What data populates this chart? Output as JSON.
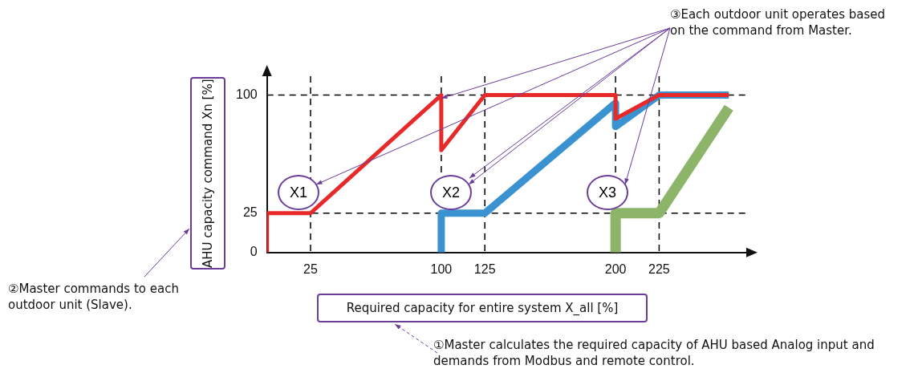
{
  "chart_data": {
    "type": "line",
    "xlabel": "Required capacity for entire system X_all [%]",
    "ylabel": "AHU capacity command Xn [%]",
    "xlim": [
      0,
      275
    ],
    "ylim": [
      0,
      112
    ],
    "xticks": [
      25,
      100,
      125,
      200,
      225
    ],
    "yticks": [
      0,
      25,
      100
    ],
    "line_style": "solid",
    "marker": "none",
    "grid": false,
    "legend": false,
    "series": [
      {
        "color": "#e8292a",
        "x": [
          0,
          0,
          25,
          100,
          100,
          125,
          200,
          200,
          225,
          265
        ],
        "values": [
          0,
          25,
          25,
          100,
          65,
          100,
          100,
          85,
          100,
          100
        ]
      },
      {
        "color": "#3a93d0",
        "x": [
          100,
          100,
          125,
          200,
          200,
          225,
          265
        ],
        "values": [
          0,
          25,
          25,
          95,
          80,
          100,
          100
        ]
      },
      {
        "color": "#8db56a",
        "x": [
          200,
          200,
          225,
          265
        ],
        "values": [
          0,
          25,
          25,
          92
        ]
      }
    ],
    "ref_lines": [
      {
        "axis": "x",
        "value": 25,
        "line_style": "dashed",
        "color": "#000000"
      },
      {
        "axis": "x",
        "value": 100,
        "line_style": "dashed",
        "color": "#000000"
      },
      {
        "axis": "x",
        "value": 125,
        "line_style": "dashed",
        "color": "#000000"
      },
      {
        "axis": "x",
        "value": 200,
        "line_style": "dashed",
        "color": "#000000"
      },
      {
        "axis": "x",
        "value": 225,
        "line_style": "dashed",
        "color": "#000000"
      },
      {
        "axis": "y",
        "value": 25,
        "line_style": "dashed",
        "color": "#000000"
      },
      {
        "axis": "y",
        "value": 100,
        "line_style": "dashed",
        "color": "#000000"
      }
    ],
    "annotations": [
      "X1",
      "X2",
      "X3",
      "③Each outdoor unit operates based on the command from Master.",
      "②Master commands to each outdoor unit (Slave).",
      "①Master calculates the required capacity of AHU based Analog input and demands from Modbus and remote control."
    ]
  }
}
